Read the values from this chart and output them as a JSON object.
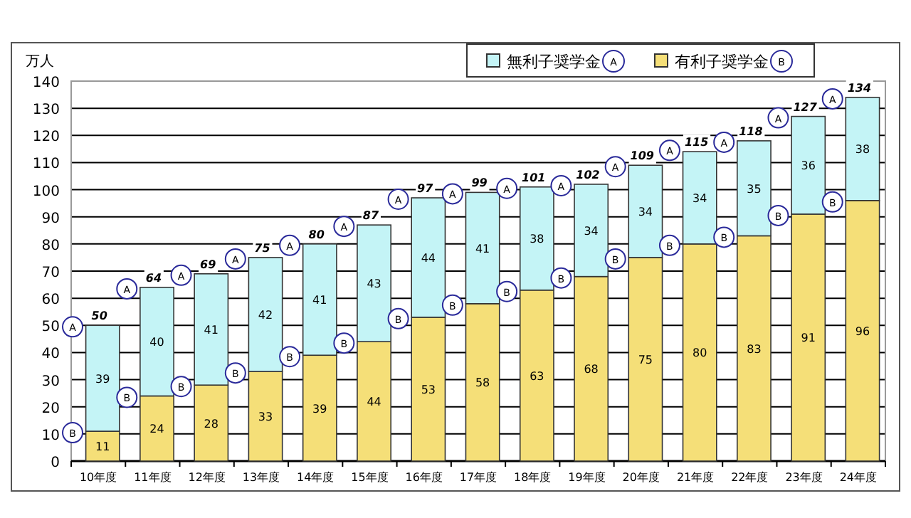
{
  "chart_data": {
    "type": "bar",
    "stacked": true,
    "ylabel": "万人",
    "categories": [
      "10年度",
      "11年度",
      "12年度",
      "13年度",
      "14年度",
      "15年度",
      "16年度",
      "17年度",
      "18年度",
      "19年度",
      "20年度",
      "21年度",
      "22年度",
      "23年度",
      "24年度"
    ],
    "series": [
      {
        "name": "有利子奨学金 B",
        "color": "#f5df78",
        "values": [
          11,
          24,
          28,
          33,
          39,
          44,
          53,
          58,
          63,
          68,
          75,
          80,
          83,
          91,
          96
        ]
      },
      {
        "name": "無利子奨学金 A",
        "color": "#c4f4f6",
        "values": [
          39,
          40,
          41,
          42,
          41,
          43,
          44,
          41,
          38,
          34,
          34,
          34,
          35,
          36,
          38
        ]
      }
    ],
    "data_labels": true,
    "totals": [
      "50",
      "64",
      "69",
      "75",
      "80",
      "87",
      "97",
      "99",
      "101",
      "102",
      "109",
      "115",
      "118",
      "127",
      "134"
    ],
    "ylim": [
      0,
      140
    ],
    "yticks": [
      0,
      10,
      20,
      30,
      40,
      50,
      60,
      70,
      80,
      90,
      100,
      110,
      120,
      130,
      140
    ],
    "grid": "y",
    "legend": "top right",
    "annotations": [
      {
        "text": "A",
        "x": "10年度",
        "y": 50
      },
      {
        "text": "B",
        "x": "10年度",
        "y": 11
      },
      {
        "text": "A",
        "x": "11年度",
        "y": 64
      },
      {
        "text": "B",
        "x": "11年度",
        "y": 24
      },
      {
        "text": "A",
        "x": "12年度",
        "y": 69
      },
      {
        "text": "B",
        "x": "12年度",
        "y": 28
      },
      {
        "text": "A",
        "x": "13年度",
        "y": 75
      },
      {
        "text": "B",
        "x": "13年度",
        "y": 33
      },
      {
        "text": "A",
        "x": "14年度",
        "y": 80
      },
      {
        "text": "B",
        "x": "14年度",
        "y": 39
      },
      {
        "text": "A",
        "x": "15年度",
        "y": 87
      },
      {
        "text": "B",
        "x": "15年度",
        "y": 44
      },
      {
        "text": "A",
        "x": "16年度",
        "y": 97
      },
      {
        "text": "B",
        "x": "16年度",
        "y": 53
      },
      {
        "text": "A",
        "x": "17年度",
        "y": 99
      },
      {
        "text": "B",
        "x": "17年度",
        "y": 58
      },
      {
        "text": "A",
        "x": "18年度",
        "y": 101
      },
      {
        "text": "B",
        "x": "18年度",
        "y": 63
      },
      {
        "text": "A",
        "x": "19年度",
        "y": 102
      },
      {
        "text": "B",
        "x": "19年度",
        "y": 68
      },
      {
        "text": "A",
        "x": "20年度",
        "y": 109
      },
      {
        "text": "B",
        "x": "20年度",
        "y": 75
      },
      {
        "text": "A",
        "x": "21年度",
        "y": 115
      },
      {
        "text": "B",
        "x": "21年度",
        "y": 80
      },
      {
        "text": "A",
        "x": "22年度",
        "y": 118
      },
      {
        "text": "B",
        "x": "22年度",
        "y": 83
      },
      {
        "text": "A",
        "x": "23年度",
        "y": 127
      },
      {
        "text": "B",
        "x": "23年度",
        "y": 91
      },
      {
        "text": "A",
        "x": "24年度",
        "y": 134
      },
      {
        "text": "B",
        "x": "24年度",
        "y": 96
      }
    ]
  }
}
